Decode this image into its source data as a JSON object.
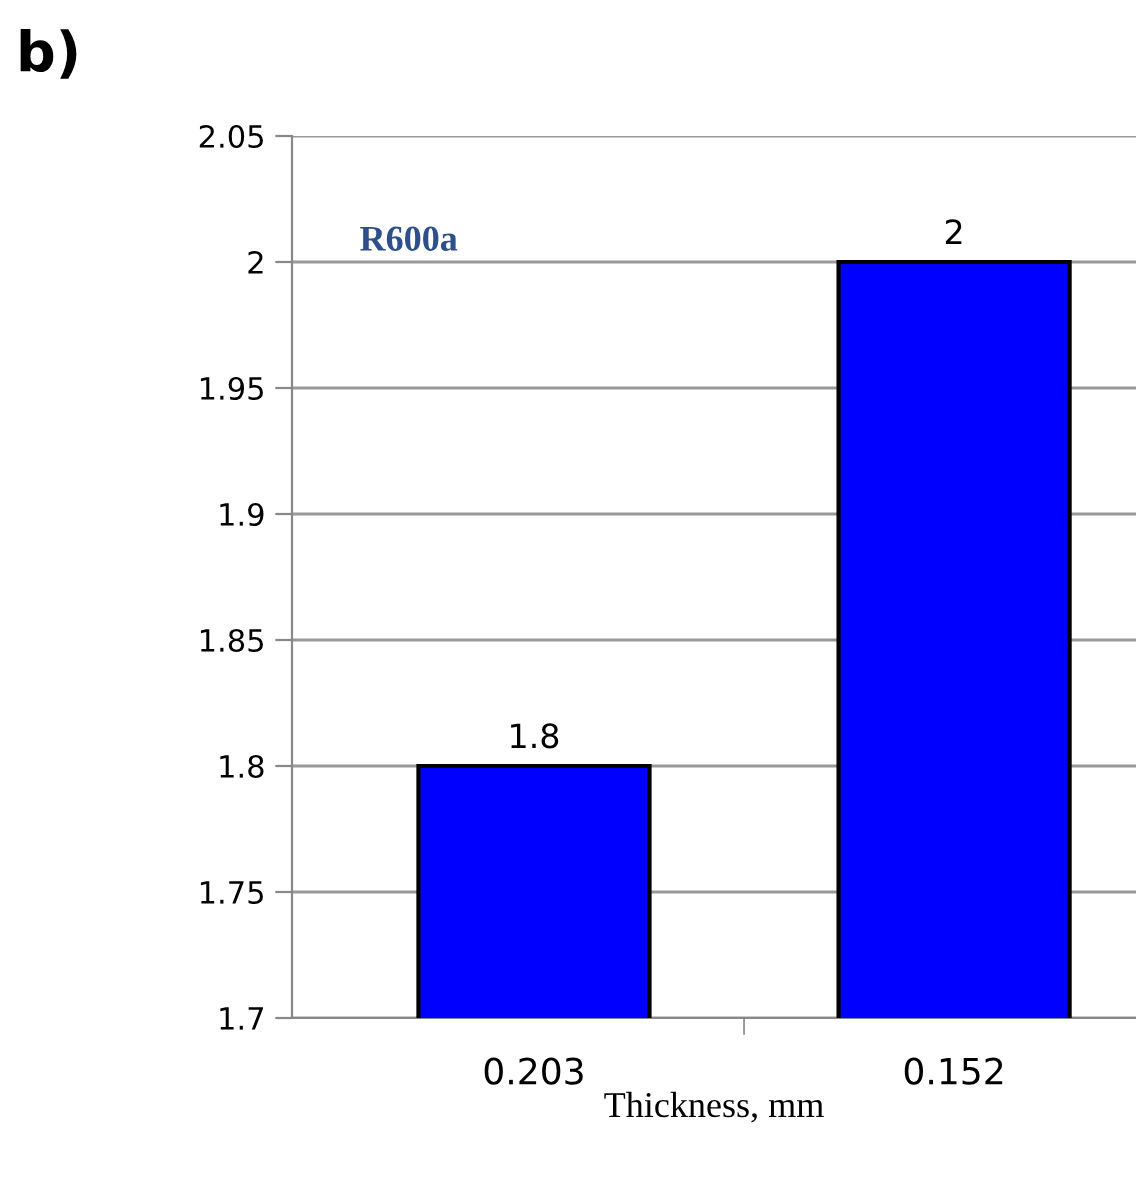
{
  "chart_data": {
    "type": "bar",
    "categories": [
      "0.203",
      "0.152"
    ],
    "values": [
      1.8,
      2
    ],
    "color": "#0000ff",
    "xlabel": "Thickness, mm",
    "ylim": [
      1.7,
      2.05
    ],
    "yticks": [
      1.7,
      1.75,
      1.8,
      1.85,
      1.9,
      1.95,
      2,
      2.05
    ],
    "grid": "y",
    "data_labels": true,
    "annotations": [
      "b)",
      "R600a"
    ]
  }
}
